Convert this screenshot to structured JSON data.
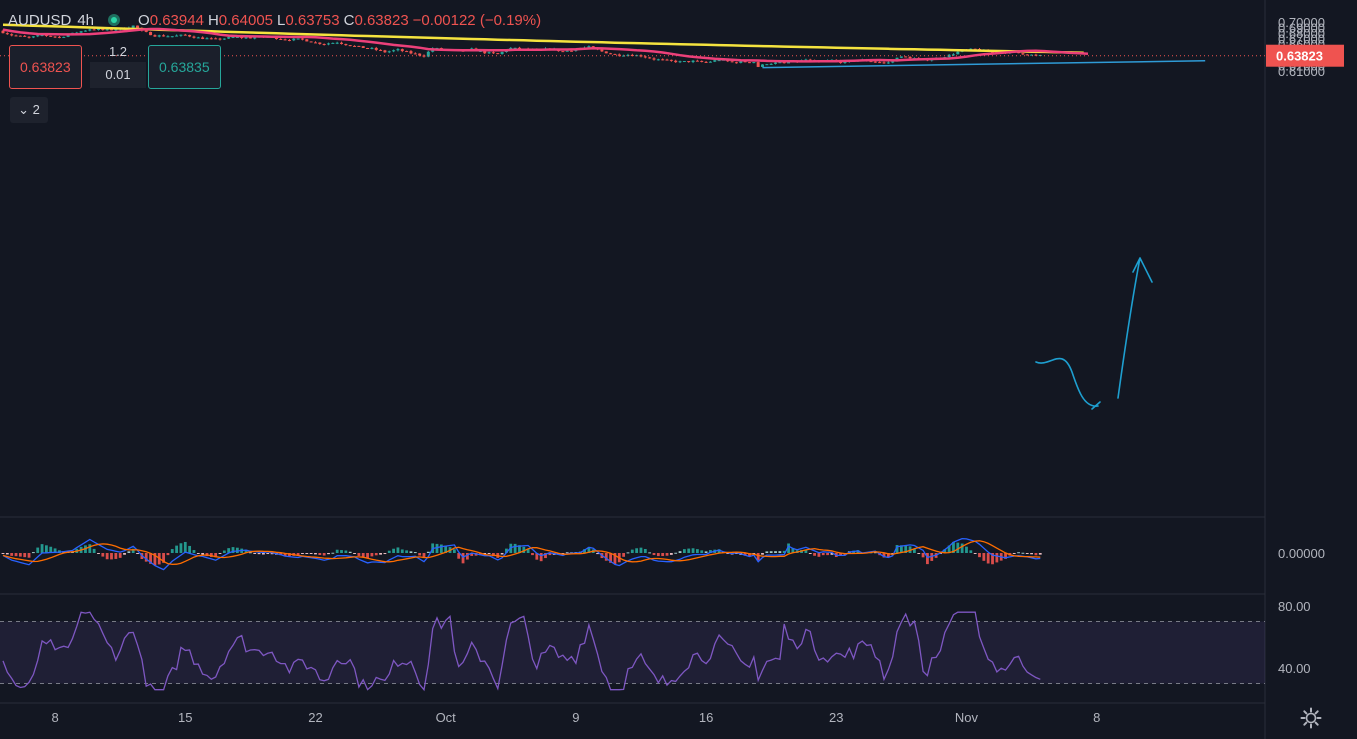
{
  "header": {
    "symbol": "AUDUSD",
    "timeframe": "4h",
    "open_label": "O",
    "open": "0.63944",
    "high_label": "H",
    "high": "0.64005",
    "low_label": "L",
    "low": "0.63753",
    "close_label": "C",
    "close": "0.63823",
    "change": "−0.00122 (−0.19%)"
  },
  "trade_buttons": {
    "sell_price": "0.63823",
    "buy_price": "0.63835",
    "quantity": "1.2",
    "spread": "0.01"
  },
  "indicators_collapsed": {
    "count": "2"
  },
  "colors": {
    "background": "#131722",
    "up": "#26a69a",
    "down": "#ef5350",
    "ma_slow": "#f5e33f",
    "ma_fast": "#ec407a",
    "trendline": "#2f9bd6",
    "projection": "#1e9fd0",
    "rsi": "#7e57c2",
    "macd": "#2962ff",
    "signal": "#ff6d00"
  },
  "icons": {
    "settings": "gear-icon",
    "collapse": "chevron-down-icon"
  },
  "chart_data": {
    "type": "candlestick",
    "symbol": "AUDUSD",
    "interval": "4h",
    "x_ticks": [
      "8",
      "15",
      "22",
      "Oct",
      "9",
      "16",
      "23",
      "Nov",
      "8"
    ],
    "x_tick_bars": [
      12,
      42,
      72,
      102,
      132,
      162,
      192,
      222,
      252
    ],
    "bars_shown": 240,
    "y_axis": {
      "ticks": [
        "0.70000",
        "0.69000",
        "0.68000",
        "0.67000",
        "0.66000",
        "0.65000",
        "0.64000",
        "0.63000",
        "0.62000",
        "0.61000"
      ],
      "range": [
        0.61,
        0.7
      ]
    },
    "last_price": "0.63823",
    "price_path": [
      [
        0,
        0.684
      ],
      [
        3,
        0.676
      ],
      [
        7,
        0.671
      ],
      [
        10,
        0.676
      ],
      [
        14,
        0.672
      ],
      [
        18,
        0.681
      ],
      [
        21,
        0.687
      ],
      [
        25,
        0.685
      ],
      [
        29,
        0.689
      ],
      [
        31,
        0.693
      ],
      [
        33,
        0.683
      ],
      [
        36,
        0.675
      ],
      [
        40,
        0.674
      ],
      [
        43,
        0.676
      ],
      [
        46,
        0.671
      ],
      [
        50,
        0.668
      ],
      [
        54,
        0.672
      ],
      [
        58,
        0.671
      ],
      [
        62,
        0.673
      ],
      [
        66,
        0.668
      ],
      [
        70,
        0.668
      ],
      [
        73,
        0.662
      ],
      [
        75,
        0.66
      ],
      [
        78,
        0.663
      ],
      [
        80,
        0.659
      ],
      [
        83,
        0.654
      ],
      [
        86,
        0.651
      ],
      [
        89,
        0.645
      ],
      [
        92,
        0.649
      ],
      [
        95,
        0.643
      ],
      [
        98,
        0.638
      ],
      [
        100,
        0.652
      ],
      [
        103,
        0.649
      ],
      [
        106,
        0.646
      ],
      [
        109,
        0.65
      ],
      [
        112,
        0.644
      ],
      [
        115,
        0.641
      ],
      [
        118,
        0.652
      ],
      [
        121,
        0.65
      ],
      [
        124,
        0.648
      ],
      [
        127,
        0.651
      ],
      [
        130,
        0.646
      ],
      [
        133,
        0.65
      ],
      [
        136,
        0.654
      ],
      [
        139,
        0.646
      ],
      [
        142,
        0.64
      ],
      [
        145,
        0.64
      ],
      [
        148,
        0.638
      ],
      [
        151,
        0.632
      ],
      [
        154,
        0.629
      ],
      [
        157,
        0.627
      ],
      [
        160,
        0.628
      ],
      [
        163,
        0.626
      ],
      [
        166,
        0.631
      ],
      [
        169,
        0.626
      ],
      [
        172,
        0.627
      ],
      [
        174,
        0.627
      ],
      [
        175,
        0.618
      ],
      [
        177,
        0.624
      ],
      [
        180,
        0.625
      ],
      [
        183,
        0.626
      ],
      [
        186,
        0.631
      ],
      [
        189,
        0.626
      ],
      [
        192,
        0.63
      ],
      [
        195,
        0.625
      ],
      [
        198,
        0.631
      ],
      [
        201,
        0.628
      ],
      [
        204,
        0.625
      ],
      [
        206,
        0.627
      ],
      [
        207,
        0.636
      ],
      [
        210,
        0.635
      ],
      [
        213,
        0.63
      ],
      [
        216,
        0.633
      ],
      [
        219,
        0.639
      ],
      [
        222,
        0.648
      ],
      [
        225,
        0.65
      ],
      [
        228,
        0.646
      ],
      [
        231,
        0.645
      ],
      [
        234,
        0.644
      ],
      [
        237,
        0.641
      ],
      [
        239,
        0.6382
      ]
    ],
    "ma_slow": {
      "from": [
        0,
        0.695
      ],
      "to": [
        251,
        0.6435
      ]
    },
    "ma_fast": {
      "from": [
        0,
        0.6865
      ],
      "to": [
        251,
        0.6375
      ]
    },
    "trendline": {
      "from": [
        175,
        0.6165
      ],
      "to": [
        277,
        0.629
      ]
    },
    "rsi": {
      "upper": 70,
      "lower": 30,
      "ticks": [
        "80.00",
        "40.00"
      ]
    },
    "macd": {
      "ticks": [
        "0.00000"
      ]
    }
  }
}
